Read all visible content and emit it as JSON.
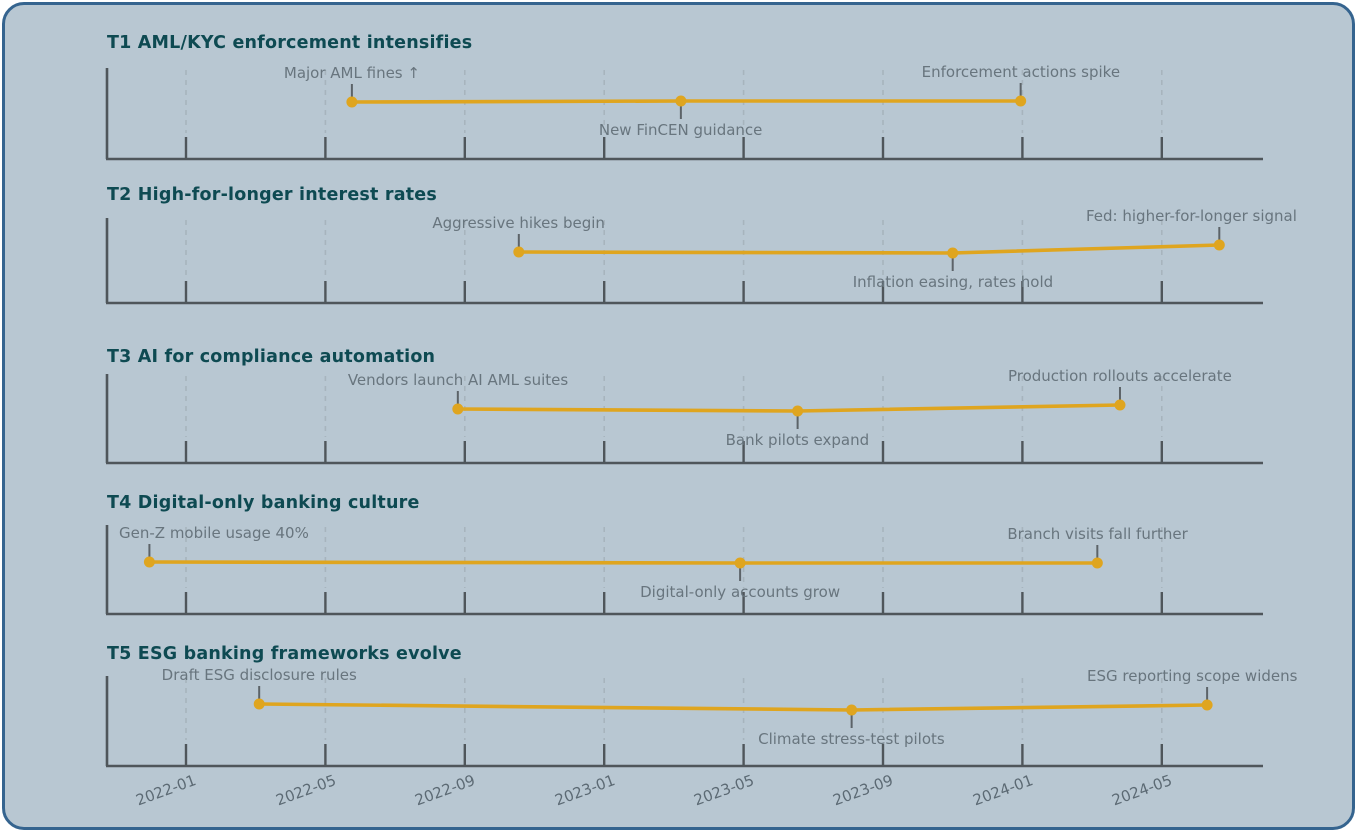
{
  "page": {
    "background": "#ffffff",
    "card_background": "#b8c7d2",
    "card_border_color": "#35648f"
  },
  "colors": {
    "panel_title": "#0e4a52",
    "event_label": "#68757e",
    "axis_spine": "#4f565b",
    "tick_label": "#5c6a74",
    "gridline": "#a7b4bd",
    "timeline_line": "#dfa51f",
    "stem": "#5c6368"
  },
  "chart_data": {
    "type": "line",
    "subtype": "multi-panel event timeline",
    "title": "",
    "x_axis": {
      "tick_labels": [
        "2022-01",
        "2022-05",
        "2022-09",
        "2023-01",
        "2023-05",
        "2023-09",
        "2024-01",
        "2024-05"
      ],
      "xlim_approx": [
        "2021-11",
        "2024-08"
      ],
      "grid": "dashed vertical"
    },
    "series": [
      {
        "id": "T1",
        "title": "T1 AML/KYC enforcement intensifies",
        "color": "#dfa51f",
        "events": [
          {
            "label": "Major AML fines ↑",
            "date": "2022-05",
            "m": 4.76,
            "side": "above",
            "dy": 1
          },
          {
            "label": "New FinCEN guidance",
            "date": "2023-03",
            "m": 14.2,
            "side": "below",
            "dy": 0
          },
          {
            "label": "Enforcement actions spike",
            "date": "2024-01",
            "m": 23.95,
            "side": "above",
            "dy": 0
          }
        ]
      },
      {
        "id": "T2",
        "title": "T2 High-for-longer interest rates",
        "color": "#dfa51f",
        "events": [
          {
            "label": "Aggressive hikes begin",
            "date": "2022-10",
            "m": 9.55,
            "side": "above",
            "dy": 1
          },
          {
            "label": "Inflation easing, rates hold",
            "date": "2023-11",
            "m": 22.0,
            "side": "below",
            "dy": 2
          },
          {
            "label": "Fed: higher-for-longer signal",
            "date": "2024-07",
            "m": 29.65,
            "side": "above",
            "dy": -6
          }
        ]
      },
      {
        "id": "T3",
        "title": "T3 AI for compliance automation",
        "color": "#dfa51f",
        "events": [
          {
            "label": "Vendors launch AI AML suites",
            "date": "2022-08",
            "m": 7.8,
            "side": "above",
            "dy": 0
          },
          {
            "label": "Bank pilots expand",
            "date": "2023-06",
            "m": 17.55,
            "side": "below",
            "dy": 2
          },
          {
            "label": "Production rollouts accelerate",
            "date": "2024-03",
            "m": 26.8,
            "side": "above",
            "dy": -4
          }
        ]
      },
      {
        "id": "T4",
        "title": "T4 Digital-only banking culture",
        "color": "#dfa51f",
        "events": [
          {
            "label": "Gen-Z mobile usage 40%",
            "date": "2021-12",
            "m": -1.05,
            "side": "above",
            "dy": 0
          },
          {
            "label": "Digital-only accounts grow",
            "date": "2023-04",
            "m": 15.9,
            "side": "below",
            "dy": 1
          },
          {
            "label": "Branch visits fall further",
            "date": "2024-03",
            "m": 26.15,
            "side": "above",
            "dy": 1
          }
        ]
      },
      {
        "id": "T5",
        "title": "T5 ESG banking frameworks evolve",
        "color": "#dfa51f",
        "events": [
          {
            "label": "Draft ESG disclosure rules",
            "date": "2022-03",
            "m": 2.1,
            "side": "above",
            "dy": 0
          },
          {
            "label": "Climate stress-test pilots",
            "date": "2023-08",
            "m": 19.1,
            "side": "below",
            "dy": 6
          },
          {
            "label": "ESG reporting scope widens",
            "date": "2024-06",
            "m": 29.3,
            "side": "above",
            "dy": 1
          }
        ]
      }
    ]
  }
}
